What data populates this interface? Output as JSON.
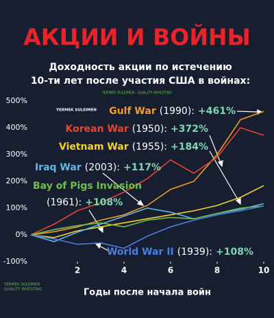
{
  "chart_data": {
    "type": "line",
    "title": "АКЦИИ И ВОЙНЫ",
    "subtitle": [
      "Доходность акции по истечению",
      "10-ти лет после участия США в войнах:"
    ],
    "watermarks": [
      "YERMEK SULEIMEN · QUALITY INVESTING",
      "YERMEK SULEIMEN",
      "YERMEK SULEIMEN",
      "QUALITY INVESTING"
    ],
    "x_label": "Годы после начала войн",
    "x": [
      0,
      1,
      2,
      3,
      4,
      5,
      6,
      7,
      8,
      9,
      10
    ],
    "xlim": [
      0,
      10
    ],
    "xticks": [
      2,
      4,
      6,
      8,
      10
    ],
    "ylim": [
      -100,
      500
    ],
    "yticks": [
      {
        "value": -100,
        "label": "-100%"
      },
      {
        "value": 0,
        "label": "0%"
      },
      {
        "value": 100,
        "label": "100%"
      },
      {
        "value": 200,
        "label": "200%"
      },
      {
        "value": 300,
        "label": "300%"
      },
      {
        "value": 400,
        "label": "400%"
      },
      {
        "value": 500,
        "label": "500%"
      }
    ],
    "grid": false,
    "series": [
      {
        "name": "Gulf War",
        "year": "(1990):",
        "final_label": "+461%",
        "color": "#f39a2a",
        "values": [
          0,
          12,
          30,
          55,
          75,
          110,
          170,
          200,
          300,
          430,
          461
        ]
      },
      {
        "name": "Korean War",
        "year": "(1950):",
        "final_label": "+372%",
        "color": "#e8452c",
        "values": [
          0,
          40,
          90,
          120,
          160,
          210,
          280,
          230,
          290,
          400,
          372
        ]
      },
      {
        "name": "Vietnam War",
        "year": "(1955):",
        "final_label": "+184%",
        "color": "#f4d22a",
        "values": [
          0,
          -10,
          15,
          30,
          45,
          60,
          75,
          90,
          110,
          140,
          184
        ]
      },
      {
        "name": "Iraq War",
        "year": "(2003):",
        "final_label": "+117%",
        "color": "#5fb8e8",
        "values": [
          0,
          -25,
          10,
          40,
          70,
          100,
          85,
          60,
          80,
          95,
          117
        ]
      },
      {
        "name": "Bay of Pigs Invasion",
        "year": "(1961):",
        "final_label": "+108%",
        "color": "#6fbf4a",
        "values": [
          0,
          20,
          35,
          45,
          30,
          55,
          65,
          60,
          80,
          100,
          108
        ]
      },
      {
        "name": "World War II",
        "year": "(1939):",
        "final_label": "+108%",
        "color": "#4a7fe0",
        "values": [
          0,
          -15,
          -35,
          -30,
          -50,
          -5,
          30,
          55,
          75,
          90,
          108
        ]
      }
    ]
  }
}
